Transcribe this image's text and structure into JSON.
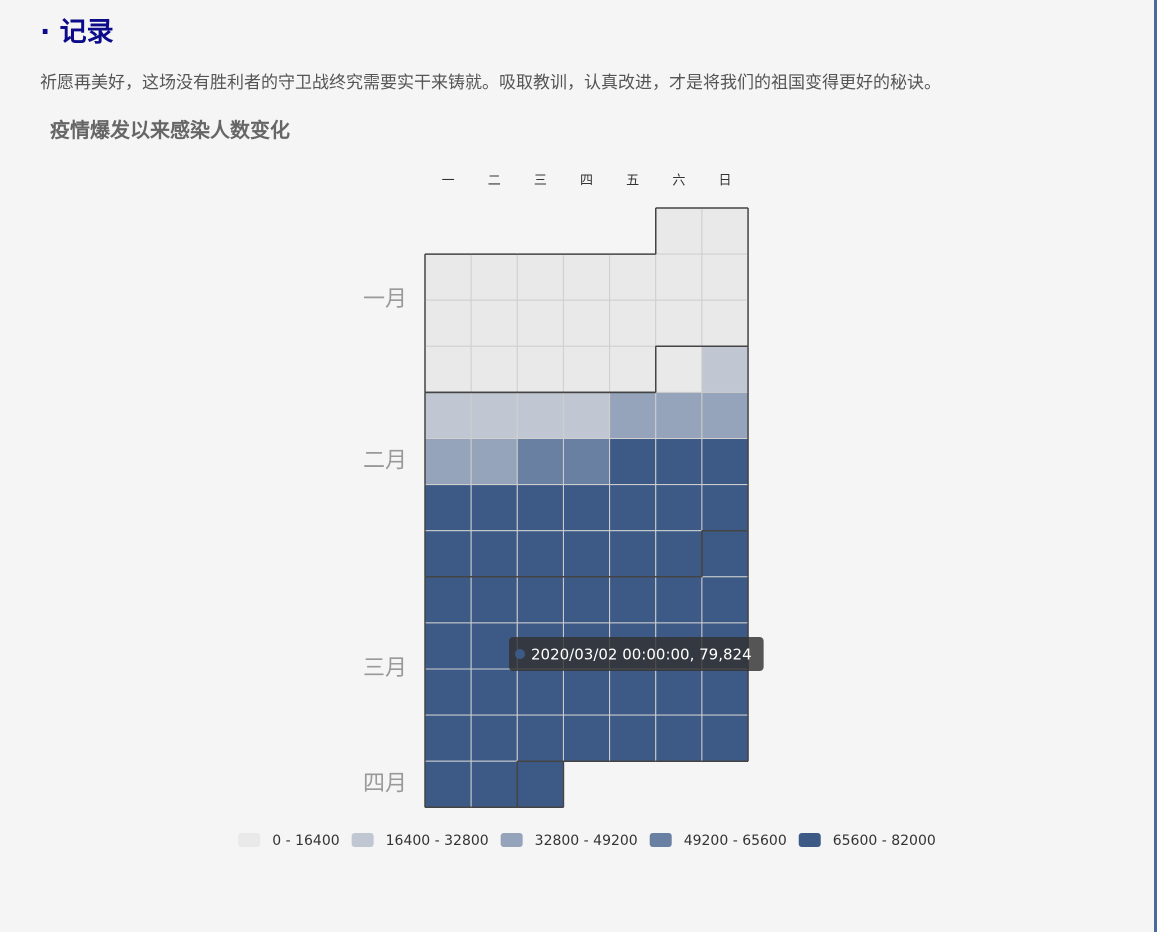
{
  "header": {
    "title": "· 记录"
  },
  "paragraph": "祈愿再美好，这场没有胜利者的守卫战终究需要实干来铸就。吸取教训，认真改进，才是将我们的祖国变得更好的秘诀。",
  "chart_data": {
    "type": "calendar",
    "title": "疫情爆发以来感染人数变化",
    "day_labels": [
      "一",
      "二",
      "三",
      "四",
      "五",
      "六",
      "日"
    ],
    "month_labels": [
      "一月",
      "二月",
      "三月",
      "四月"
    ],
    "dates": [
      "2020-01-11",
      "2020-01-12",
      "2020-01-13",
      "2020-01-14",
      "2020-01-15",
      "2020-01-16",
      "2020-01-17",
      "2020-01-18",
      "2020-01-19",
      "2020-01-20",
      "2020-01-21",
      "2020-01-22",
      "2020-01-23",
      "2020-01-24",
      "2020-01-25",
      "2020-01-26",
      "2020-01-27",
      "2020-01-28",
      "2020-01-29",
      "2020-01-30",
      "2020-01-31",
      "2020-02-01",
      "2020-02-02",
      "2020-02-03",
      "2020-02-04",
      "2020-02-05",
      "2020-02-06",
      "2020-02-07",
      "2020-02-08",
      "2020-02-09",
      "2020-02-10",
      "2020-02-11",
      "2020-02-12",
      "2020-02-13",
      "2020-02-14",
      "2020-02-15",
      "2020-02-16",
      "2020-02-17",
      "2020-02-18",
      "2020-02-19",
      "2020-02-20",
      "2020-02-21",
      "2020-02-22",
      "2020-02-23",
      "2020-02-24",
      "2020-02-25",
      "2020-02-26",
      "2020-02-27",
      "2020-02-28",
      "2020-02-29",
      "2020-03-01",
      "2020-03-02",
      "2020-03-03",
      "2020-03-04",
      "2020-03-05",
      "2020-03-06",
      "2020-03-07",
      "2020-03-08",
      "2020-03-09",
      "2020-03-10",
      "2020-03-11",
      "2020-03-12",
      "2020-03-13",
      "2020-03-14",
      "2020-03-15",
      "2020-03-16",
      "2020-03-17",
      "2020-03-18",
      "2020-03-19",
      "2020-03-20",
      "2020-03-21",
      "2020-03-22",
      "2020-03-23",
      "2020-03-24",
      "2020-03-25",
      "2020-03-26",
      "2020-03-27",
      "2020-03-28",
      "2020-03-29",
      "2020-03-30",
      "2020-03-31",
      "2020-04-01"
    ],
    "values": [
      41,
      41,
      41,
      41,
      41,
      45,
      62,
      121,
      198,
      291,
      440,
      571,
      830,
      1287,
      1975,
      2744,
      4515,
      5974,
      7711,
      9692,
      11791,
      14380,
      17205,
      20438,
      24324,
      28018,
      31161,
      34546,
      37198,
      40171,
      42638,
      44653,
      59804,
      63851,
      66492,
      68500,
      70548,
      72436,
      74185,
      74576,
      75465,
      76288,
      76936,
      77150,
      77658,
      78064,
      78497,
      78824,
      79251,
      79489,
      79682,
      79824,
      80026,
      80151,
      80270,
      80409,
      80552,
      80651,
      80695,
      80735,
      80754,
      80778,
      80793,
      80813,
      80824,
      80844,
      80860,
      80881,
      80894,
      80928,
      80967,
      81008,
      81054,
      81093,
      81171,
      81218,
      81285,
      81340,
      81394,
      81439,
      81470,
      81554
    ],
    "pieces": [
      {
        "min": 0,
        "max": 16400,
        "label": "0 - 16400",
        "color": "#e9e9e9"
      },
      {
        "min": 16400,
        "max": 32800,
        "label": "16400 - 32800",
        "color": "#c0c7d2"
      },
      {
        "min": 32800,
        "max": 49200,
        "label": "32800 - 49200",
        "color": "#95a4bb"
      },
      {
        "min": 49200,
        "max": 65600,
        "label": "49200 - 65600",
        "color": "#6a80a2"
      },
      {
        "min": 65600,
        "max": 82000,
        "label": "65600 - 82000",
        "color": "#3d5a87"
      }
    ],
    "tooltip": "2020/03/02 00:00:00, 79,824"
  }
}
